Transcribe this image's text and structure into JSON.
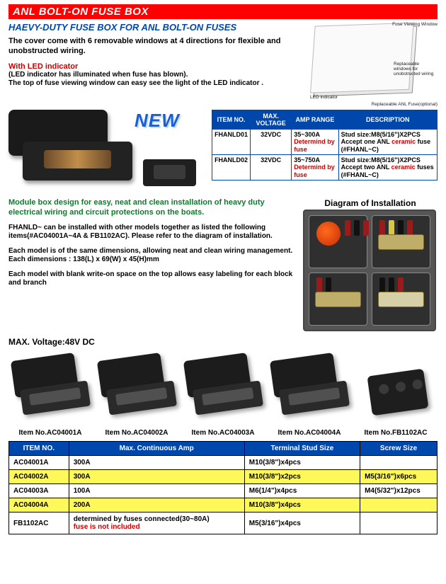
{
  "banner": "ANL BOLT-ON FUSE BOX",
  "heading": "HAEVY-DUTY FUSE BOX FOR ANL BOLT-ON FUSES",
  "intro": "The cover come with 6 removable windows at 4 directions for flexible and unobstructed wiring.",
  "led_heading": "With LED indicator",
  "led_line1": "(LED indicator has illuminated when fuse has blown).",
  "led_line2": "The top of fuse viewing window can easy see the light of the LED indicator .",
  "diagram_labels": {
    "viewing": "Fuse Viewing Window",
    "windows": "Replaceable windows for unobstructed wiring",
    "led": "LED indicator",
    "fuse": "Replaceable ANL Fuse(optional)"
  },
  "new_tag": "NEW",
  "t1": {
    "headers": [
      "ITEM NO.",
      "MAX. VOLTAGE",
      "AMP RANGE",
      "DESCRIPTION"
    ],
    "rows": [
      {
        "item": "FHANLD01",
        "volt": "32VDC",
        "amp_main": "35~300A",
        "amp_note": "Determind by fuse",
        "desc_pre": "Stud size:M8(5/16\")X2PCS\nAccept one ANL ",
        "desc_red": "ceramic",
        "desc_post": " fuse (#FHANL~C)"
      },
      {
        "item": "FHANLD02",
        "volt": "32VDC",
        "amp_main": "35~750A",
        "amp_note": "Determind by fuse",
        "desc_pre": "Stud size:M8(5/16\")X2PCS\nAccept two ANL ",
        "desc_red": "ceramic",
        "desc_post": " fuses (#FHANL~C)"
      }
    ]
  },
  "green": "Module box design for easy, neat and clean installation of heavy duty electrical wiring and circuit protections on the boats.",
  "p1": "FHANLD~ can be installed with other models together as listed the following items(#AC04001A~4A & FB1102AC). Please refer to the diagram of installation.",
  "p2": "Each model is of the same dimensions, allowing neat and clean wiring management. Each dimensions : 138(L) x 69(W) x 45(H)mm",
  "p3": "Each model with blank write-on space on the top allows easy labeling for each block and branch",
  "diag_title": "Diagram of Installation",
  "maxv": "MAX. Voltage:48V DC",
  "products": [
    {
      "name": "Item No.AC04001A"
    },
    {
      "name": "Item No.AC04002A"
    },
    {
      "name": "Item No.AC04003A"
    },
    {
      "name": "Item No.AC04004A"
    },
    {
      "name": "Item No.FB1102AC"
    }
  ],
  "t2": {
    "headers": [
      "ITEM NO.",
      "Max. Continuous Amp",
      "Terminal Stud Size",
      "Screw Size"
    ],
    "rows": [
      {
        "item": "AC04001A",
        "amp": "300A",
        "amp_note": "",
        "stud": "M10(3/8\")x4pcs",
        "screw": "",
        "hi": false
      },
      {
        "item": "AC04002A",
        "amp": "300A",
        "amp_note": "",
        "stud": "M10(3/8\")x2pcs",
        "screw": "M5(3/16\")x6pcs",
        "hi": true
      },
      {
        "item": "AC04003A",
        "amp": "100A",
        "amp_note": "",
        "stud": "M6(1/4\")x4pcs",
        "screw": "M4(5/32\")x12pcs",
        "hi": false
      },
      {
        "item": "AC04004A",
        "amp": "200A",
        "amp_note": "",
        "stud": "M10(3/8\")x4pcs",
        "screw": "",
        "hi": true
      },
      {
        "item": "FB1102AC",
        "amp": "determined by fuses connected(30~80A)",
        "amp_note": "fuse is not included",
        "stud": "M5(3/16\")x4pcs",
        "screw": "",
        "hi": false
      }
    ]
  },
  "colors": {
    "red": "#ff0000",
    "blue": "#0047ab",
    "green": "#0a7d2a",
    "text_red": "#cc0000",
    "highlight": "#fff85a"
  }
}
